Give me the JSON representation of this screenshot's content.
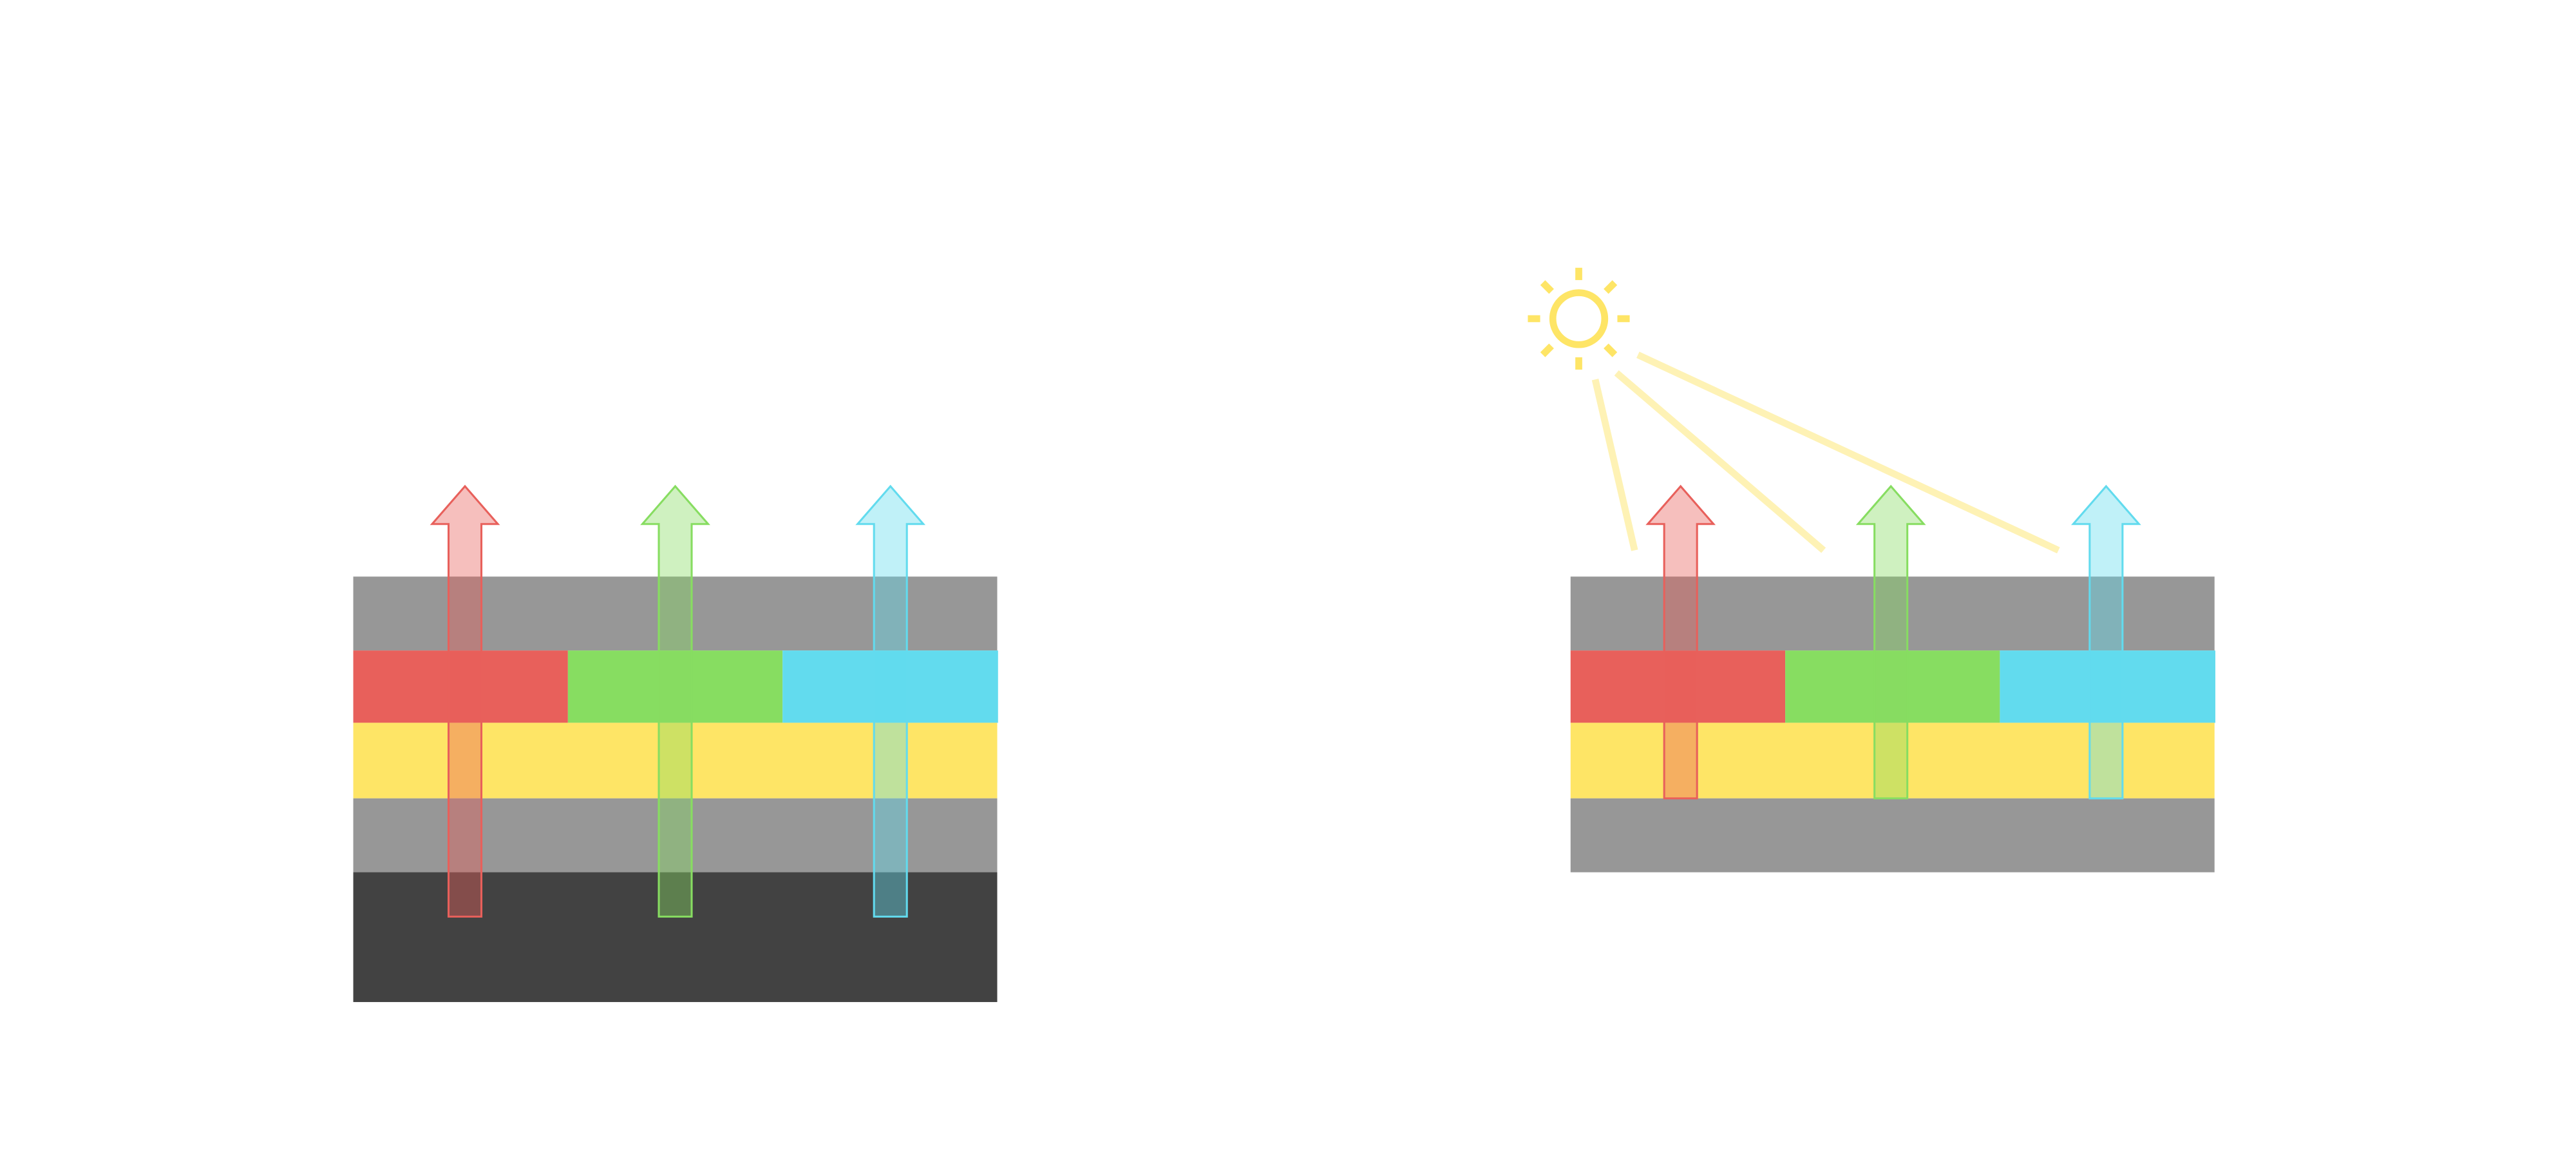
{
  "colors": {
    "background": "#ffffff",
    "gray_layer": "#979797",
    "dark_layer": "#424242",
    "yellow_layer": "#fee566",
    "red": "#e8605b",
    "green": "#87dd61",
    "cyan": "#62dbee",
    "sun": "#fee566",
    "sun_ray_light": "#fef2b5"
  },
  "left_stack": {
    "layers": [
      "gray",
      "red-green-cyan",
      "yellow",
      "gray",
      "dark"
    ],
    "arrows": [
      "red",
      "green",
      "cyan"
    ]
  },
  "right_stack": {
    "layers": [
      "gray",
      "red-green-cyan",
      "yellow",
      "gray"
    ],
    "arrows": [
      "red",
      "green",
      "cyan"
    ],
    "light_source": "sun-icon"
  }
}
